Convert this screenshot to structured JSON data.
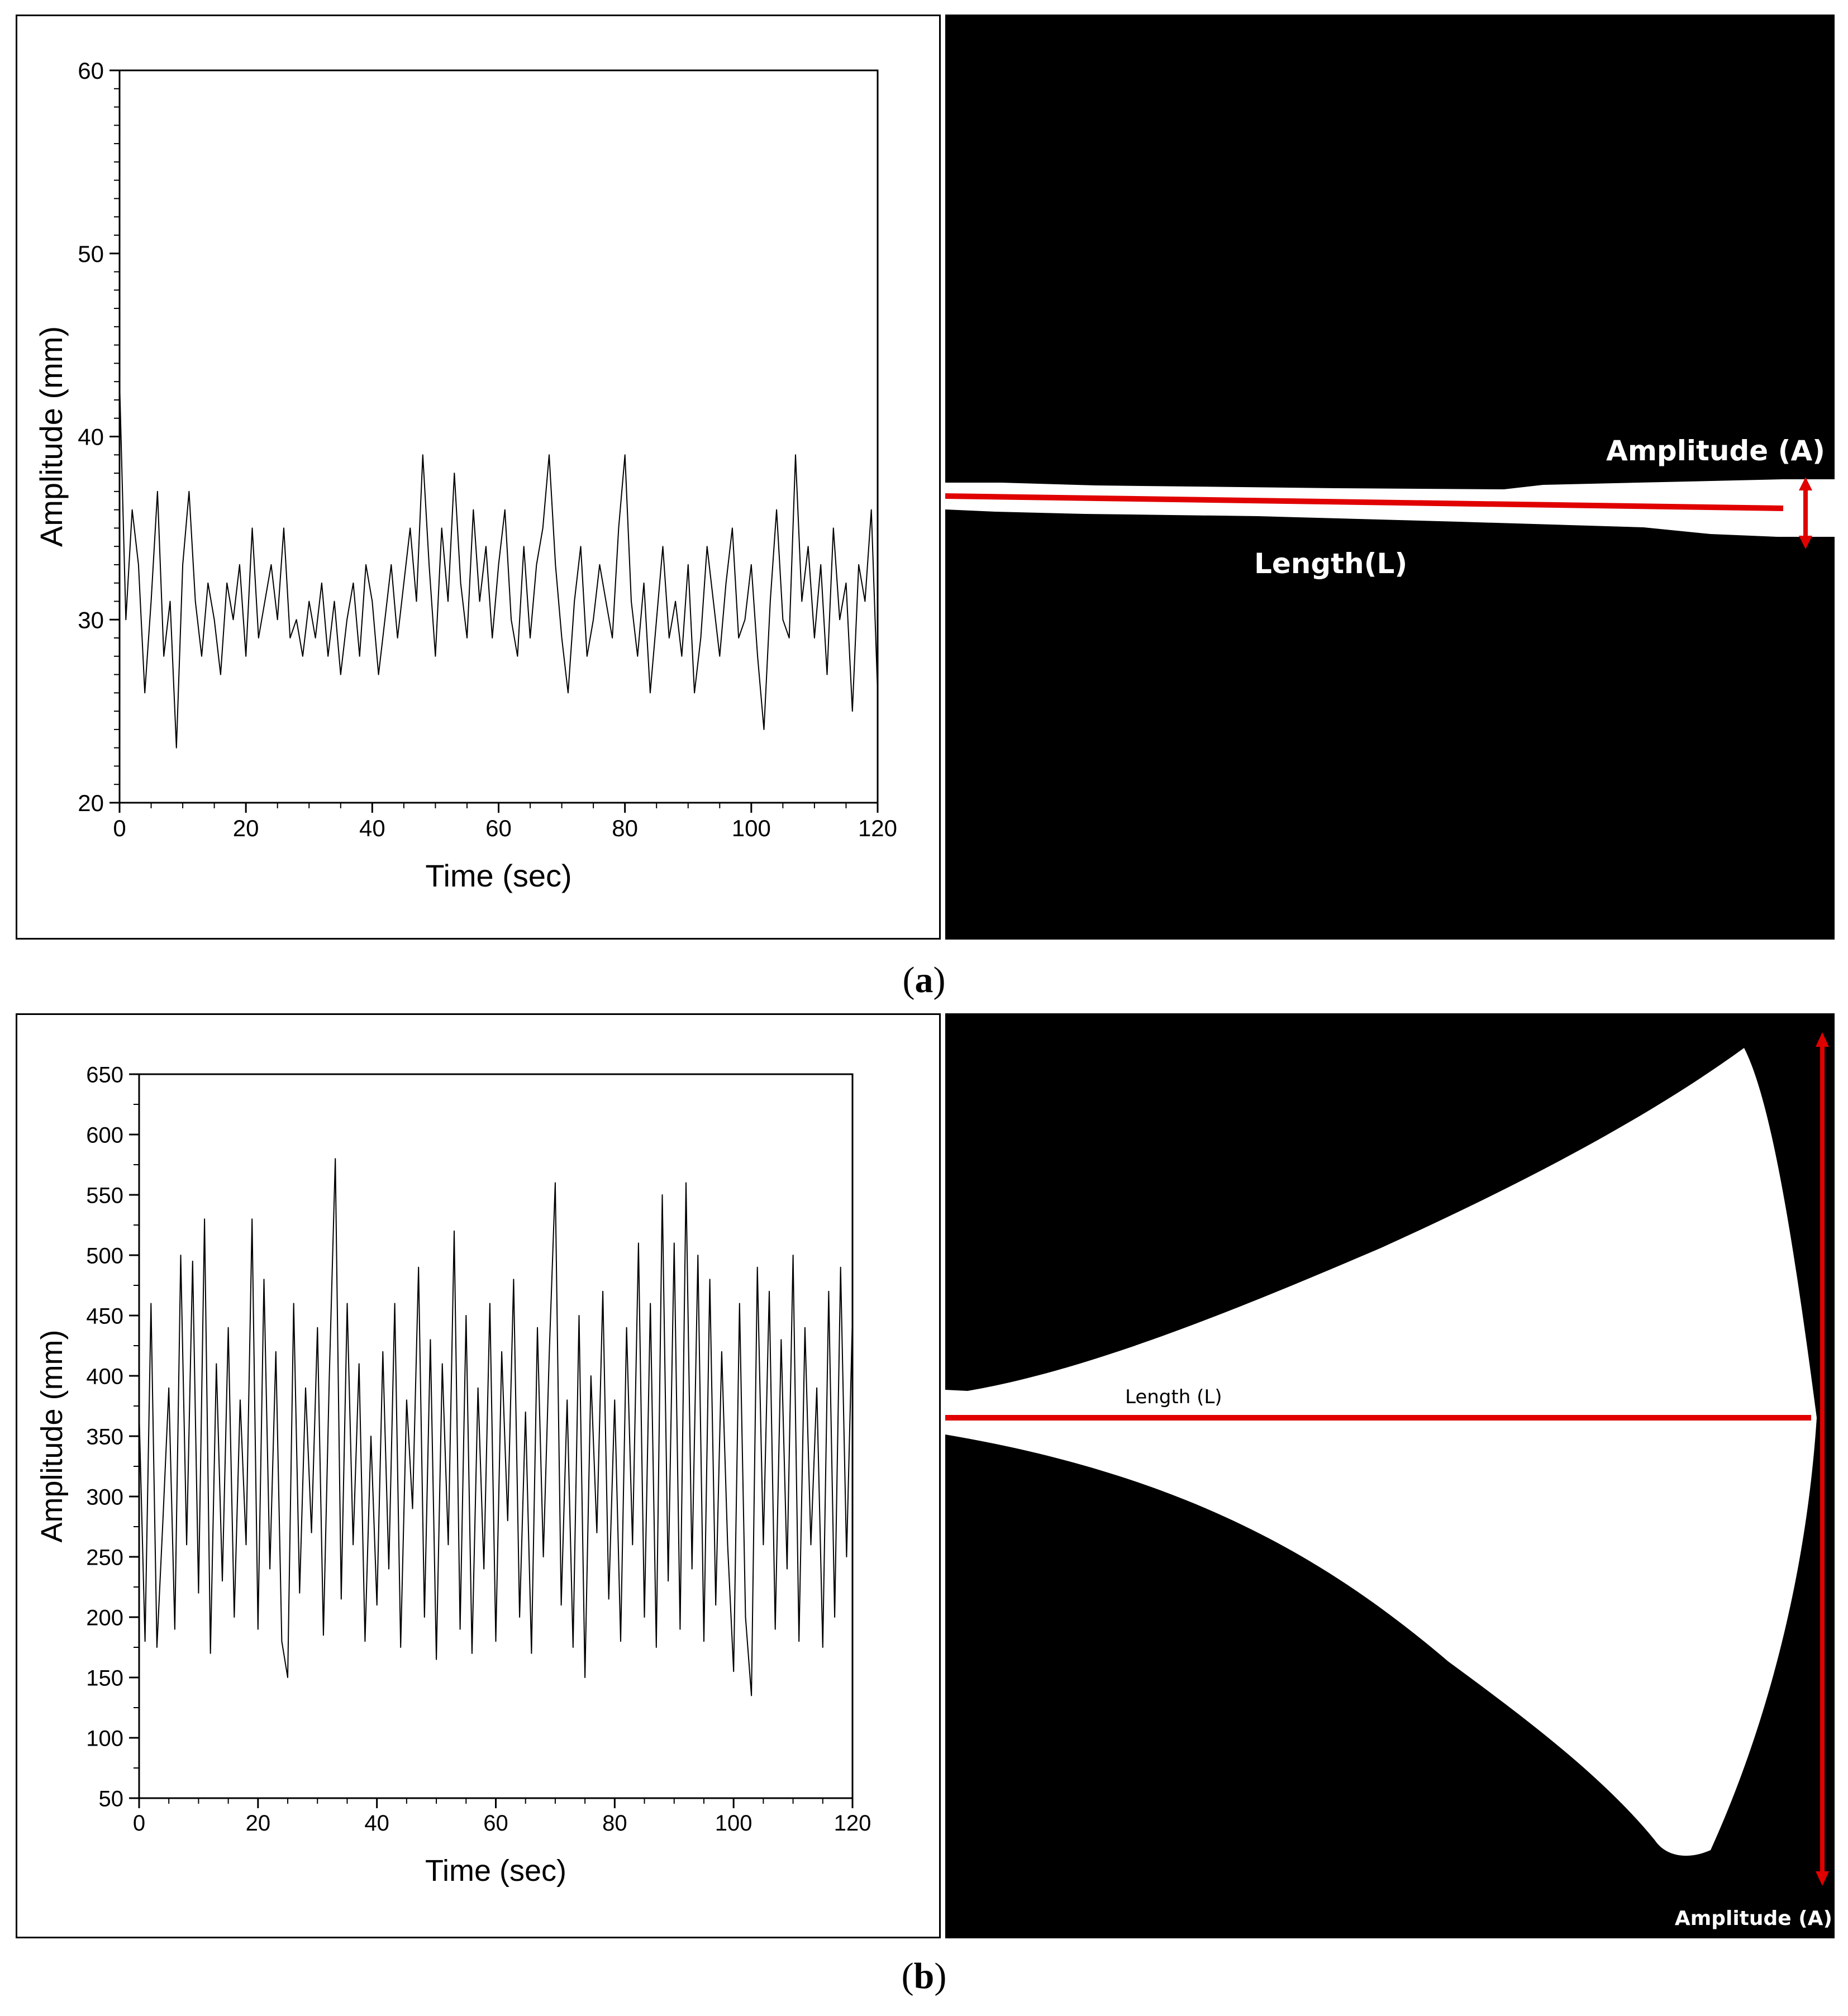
{
  "figure": {
    "captions": [
      {
        "open": "(",
        "letter": "a",
        "close": ")"
      },
      {
        "open": "(",
        "letter": "b",
        "close": ")"
      }
    ]
  },
  "colors": {
    "line": "#000000",
    "measure": "#e00000",
    "image_background": "#000000",
    "flame": "#ffffff"
  },
  "schematics": [
    {
      "id": "a",
      "amplitude_label": "Amplitude (A)",
      "length_label": "Length(L)"
    },
    {
      "id": "b",
      "amplitude_label": "Amplitude (A)",
      "length_label": "Length (L)"
    }
  ],
  "chart_data": [
    {
      "id": "a",
      "type": "line",
      "title": "",
      "xlabel": "Time (sec)",
      "ylabel": "Amplitude (mm)",
      "xlim": [
        0,
        120
      ],
      "ylim": [
        20,
        60
      ],
      "xticks": [
        0,
        20,
        40,
        60,
        80,
        100,
        120
      ],
      "yticks": [
        20,
        30,
        40,
        50,
        60
      ],
      "grid": false,
      "series": [
        {
          "x": [
            0,
            1,
            2,
            3,
            4,
            5,
            6,
            7,
            8,
            9,
            10,
            11,
            12,
            13,
            14,
            15,
            16,
            17,
            18,
            19,
            20,
            21,
            22,
            23,
            24,
            25,
            26,
            27,
            28,
            29,
            30,
            31,
            32,
            33,
            34,
            35,
            36,
            37,
            38,
            39,
            40,
            41,
            42,
            43,
            44,
            45,
            46,
            47,
            48,
            49,
            50,
            51,
            52,
            53,
            54,
            55,
            56,
            57,
            58,
            59,
            60,
            61,
            62,
            63,
            64,
            65,
            66,
            67,
            68,
            69,
            70,
            71,
            72,
            73,
            74,
            75,
            76,
            77,
            78,
            79,
            80,
            81,
            82,
            83,
            84,
            85,
            86,
            87,
            88,
            89,
            90,
            91,
            92,
            93,
            94,
            95,
            96,
            97,
            98,
            99,
            100,
            101,
            102,
            103,
            104,
            105,
            106,
            107,
            108,
            109,
            110,
            111,
            112,
            113,
            114,
            115,
            116,
            117,
            118,
            119,
            120
          ],
          "y": [
            43,
            30,
            36,
            33,
            26,
            31,
            37,
            28,
            31,
            23,
            33,
            37,
            31,
            28,
            32,
            30,
            27,
            32,
            30,
            33,
            28,
            35,
            29,
            31,
            33,
            30,
            35,
            29,
            30,
            28,
            31,
            29,
            32,
            28,
            31,
            27,
            30,
            32,
            28,
            33,
            31,
            27,
            30,
            33,
            29,
            32,
            35,
            31,
            39,
            33,
            28,
            35,
            31,
            38,
            32,
            29,
            36,
            31,
            34,
            29,
            33,
            36,
            30,
            28,
            34,
            29,
            33,
            35,
            39,
            33,
            29,
            26,
            31,
            34,
            28,
            30,
            33,
            31,
            29,
            35,
            39,
            31,
            28,
            32,
            26,
            30,
            34,
            29,
            31,
            28,
            33,
            26,
            29,
            34,
            31,
            28,
            32,
            35,
            29,
            30,
            33,
            28,
            24,
            31,
            36,
            30,
            29,
            39,
            31,
            34,
            29,
            33,
            27,
            35,
            30,
            32,
            25,
            33,
            31,
            36,
            26
          ]
        }
      ]
    },
    {
      "id": "b",
      "type": "line",
      "title": "",
      "xlabel": "Time (sec)",
      "ylabel": "Amplitude (mm)",
      "xlim": [
        0,
        120
      ],
      "ylim": [
        50,
        650
      ],
      "xticks": [
        0,
        20,
        40,
        60,
        80,
        100,
        120
      ],
      "yticks": [
        50,
        100,
        150,
        200,
        250,
        300,
        350,
        400,
        450,
        500,
        550,
        600,
        650
      ],
      "grid": false,
      "series": [
        {
          "x": [
            0,
            1,
            2,
            3,
            4,
            5,
            6,
            7,
            8,
            9,
            10,
            11,
            12,
            13,
            14,
            15,
            16,
            17,
            18,
            19,
            20,
            21,
            22,
            23,
            24,
            25,
            26,
            27,
            28,
            29,
            30,
            31,
            32,
            33,
            34,
            35,
            36,
            37,
            38,
            39,
            40,
            41,
            42,
            43,
            44,
            45,
            46,
            47,
            48,
            49,
            50,
            51,
            52,
            53,
            54,
            55,
            56,
            57,
            58,
            59,
            60,
            61,
            62,
            63,
            64,
            65,
            66,
            67,
            68,
            69,
            70,
            71,
            72,
            73,
            74,
            75,
            76,
            77,
            78,
            79,
            80,
            81,
            82,
            83,
            84,
            85,
            86,
            87,
            88,
            89,
            90,
            91,
            92,
            93,
            94,
            95,
            96,
            97,
            98,
            99,
            100,
            101,
            102,
            103,
            104,
            105,
            106,
            107,
            108,
            109,
            110,
            111,
            112,
            113,
            114,
            115,
            116,
            117,
            118,
            119,
            120
          ],
          "y": [
            370,
            180,
            460,
            175,
            280,
            390,
            190,
            500,
            260,
            495,
            220,
            530,
            170,
            410,
            230,
            440,
            200,
            380,
            260,
            530,
            190,
            480,
            240,
            420,
            180,
            150,
            460,
            220,
            390,
            270,
            440,
            185,
            400,
            580,
            215,
            460,
            260,
            410,
            180,
            350,
            210,
            420,
            240,
            460,
            175,
            380,
            290,
            490,
            200,
            430,
            165,
            410,
            260,
            520,
            190,
            450,
            170,
            390,
            240,
            460,
            180,
            420,
            280,
            480,
            200,
            370,
            170,
            440,
            250,
            420,
            560,
            210,
            380,
            175,
            450,
            150,
            400,
            270,
            470,
            215,
            380,
            180,
            440,
            260,
            510,
            200,
            460,
            175,
            550,
            230,
            510,
            190,
            560,
            240,
            500,
            180,
            480,
            210,
            420,
            260,
            155,
            460,
            200,
            135,
            490,
            260,
            470,
            190,
            430,
            240,
            500,
            180,
            440,
            260,
            390,
            175,
            470,
            200,
            490,
            250,
            450
          ]
        }
      ]
    }
  ]
}
